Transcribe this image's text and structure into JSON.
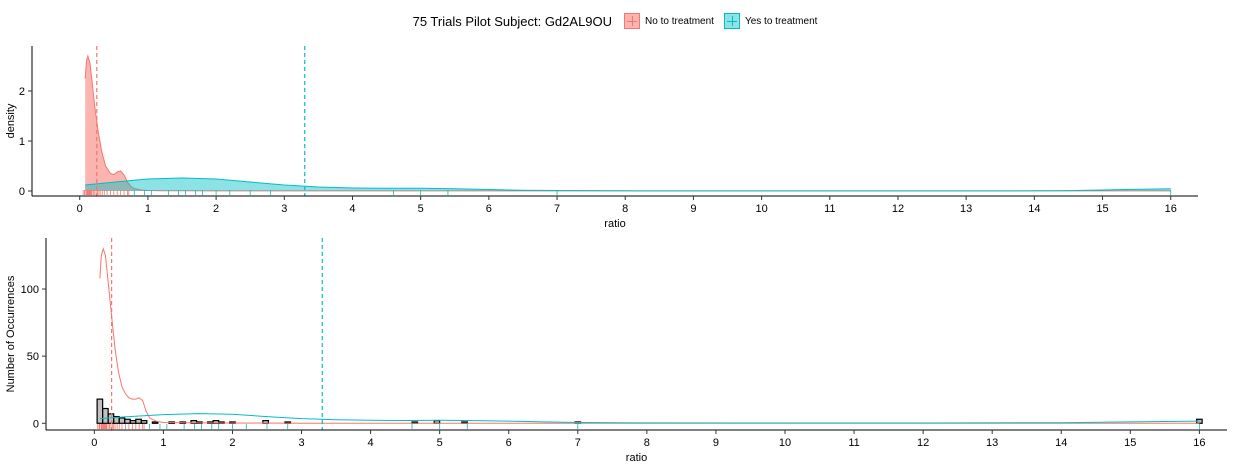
{
  "legend": {
    "title": "75 Trials Pilot Subject:  Gd2AL9OU",
    "items": [
      {
        "label": "No to treatment",
        "color": "#F8766D",
        "fill": "#F8766D"
      },
      {
        "label": "Yes to treatment",
        "color": "#00BFC4",
        "fill": "#00BFC4"
      }
    ]
  },
  "chart_data": [
    {
      "type": "area",
      "xlabel": "ratio",
      "ylabel": "density",
      "xlim": [
        -0.7,
        16.4
      ],
      "ylim": [
        -0.1,
        2.9
      ],
      "x_ticks": [
        0,
        1,
        2,
        3,
        4,
        5,
        6,
        7,
        8,
        9,
        10,
        11,
        12,
        13,
        14,
        15,
        16
      ],
      "y_ticks": [
        0,
        1,
        2
      ],
      "grid": false,
      "series": [
        {
          "name": "No to treatment",
          "color": "#F8766D",
          "mean_line": 0.25,
          "x": [
            0.08,
            0.1,
            0.12,
            0.15,
            0.18,
            0.22,
            0.27,
            0.32,
            0.38,
            0.45,
            0.5,
            0.55,
            0.6,
            0.65,
            0.7,
            0.75,
            0.8,
            0.9,
            1.0,
            1.2,
            1.5,
            2.0,
            3.0,
            4.0,
            5.0,
            6.0,
            7.0,
            8.0,
            10.0,
            12.0,
            14.0,
            16.0
          ],
          "values": [
            2.25,
            2.6,
            2.7,
            2.55,
            2.2,
            1.7,
            1.2,
            0.8,
            0.5,
            0.35,
            0.33,
            0.38,
            0.4,
            0.32,
            0.18,
            0.09,
            0.05,
            0.02,
            0.01,
            0.005,
            0.003,
            0.002,
            0.001,
            0.001,
            0.001,
            0.001,
            0.001,
            0.001,
            0.001,
            0.001,
            0.001,
            0.001
          ]
        },
        {
          "name": "Yes to treatment",
          "color": "#00BFC4",
          "mean_line": 3.3,
          "x": [
            0.08,
            0.3,
            0.6,
            1.0,
            1.5,
            2.0,
            2.5,
            3.0,
            3.5,
            4.0,
            4.5,
            5.0,
            5.5,
            6.0,
            6.5,
            7.0,
            8.0,
            9.0,
            10.0,
            11.0,
            12.0,
            13.0,
            14.0,
            14.5,
            15.0,
            15.5,
            16.0
          ],
          "values": [
            0.12,
            0.15,
            0.19,
            0.24,
            0.26,
            0.24,
            0.18,
            0.12,
            0.08,
            0.06,
            0.055,
            0.055,
            0.045,
            0.03,
            0.015,
            0.01,
            0.003,
            0.002,
            0.002,
            0.002,
            0.002,
            0.002,
            0.004,
            0.008,
            0.02,
            0.035,
            0.045
          ]
        }
      ],
      "rug_no": [
        0.05,
        0.07,
        0.08,
        0.1,
        0.11,
        0.12,
        0.13,
        0.14,
        0.15,
        0.16,
        0.17,
        0.18,
        0.2,
        0.22,
        0.24,
        0.26,
        0.28,
        0.3,
        0.33,
        0.36,
        0.4,
        0.45,
        0.5,
        0.55,
        0.6,
        0.65,
        0.7,
        0.72
      ],
      "rug_yes": [
        0.8,
        0.95,
        1.05,
        1.3,
        1.45,
        1.55,
        1.7,
        1.8,
        2.0,
        2.2,
        2.5,
        2.8,
        4.6,
        5.0,
        5.4,
        7.0,
        16.0
      ]
    },
    {
      "type": "bar",
      "xlabel": "ratio",
      "ylabel": "Number of Occurrences",
      "xlim": [
        -0.7,
        16.4
      ],
      "ylim": [
        -5,
        138
      ],
      "x_ticks": [
        0,
        1,
        2,
        3,
        4,
        5,
        6,
        7,
        8,
        9,
        10,
        11,
        12,
        13,
        14,
        15,
        16
      ],
      "y_ticks": [
        0,
        50,
        100
      ],
      "grid": false,
      "bin_width": 0.08,
      "bins_x": [
        0.08,
        0.16,
        0.24,
        0.32,
        0.4,
        0.48,
        0.56,
        0.64,
        0.72,
        0.88,
        1.12,
        1.28,
        1.44,
        1.52,
        1.68,
        1.76,
        1.84,
        2.0,
        2.48,
        2.8,
        4.64,
        4.96,
        5.36,
        7.0,
        16.0
      ],
      "bins_count": [
        18,
        11,
        7,
        5,
        4,
        3,
        2,
        3,
        2,
        1,
        1,
        1,
        2,
        1,
        1,
        2,
        1,
        1,
        2,
        1,
        1,
        2,
        1,
        1,
        3
      ],
      "series": [
        {
          "name": "No to treatment",
          "color": "#F8766D",
          "mean_line": 0.25,
          "x": [
            0.08,
            0.1,
            0.13,
            0.16,
            0.2,
            0.25,
            0.3,
            0.35,
            0.4,
            0.45,
            0.5,
            0.55,
            0.6,
            0.65,
            0.7,
            0.75,
            0.8,
            0.9,
            1.0,
            1.5,
            2.0,
            3.0,
            5.0,
            8.0,
            12.0,
            16.0
          ],
          "values": [
            108,
            125,
            130,
            125,
            105,
            80,
            55,
            38,
            27,
            22,
            19,
            18,
            18,
            19,
            17,
            9,
            4,
            1.5,
            0.6,
            0.3,
            0.2,
            0.1,
            0.1,
            0.1,
            0.1,
            0.1
          ]
        },
        {
          "name": "Yes to treatment",
          "color": "#00BFC4",
          "mean_line": 3.3,
          "x": [
            0.08,
            0.5,
            1.0,
            1.5,
            2.0,
            2.5,
            3.0,
            3.5,
            4.0,
            4.5,
            5.0,
            5.5,
            6.0,
            6.5,
            7.0,
            8.0,
            10.0,
            12.0,
            14.0,
            15.0,
            16.0
          ],
          "values": [
            3.5,
            5,
            6.5,
            7.2,
            6.8,
            5,
            3.5,
            2.6,
            2.2,
            2.1,
            2.2,
            2.0,
            1.6,
            1.0,
            0.6,
            0.3,
            0.2,
            0.2,
            0.4,
            1.0,
            1.6
          ]
        }
      ],
      "rug_no": [
        0.05,
        0.07,
        0.08,
        0.1,
        0.11,
        0.12,
        0.13,
        0.14,
        0.15,
        0.16,
        0.17,
        0.18,
        0.2,
        0.22,
        0.24,
        0.26,
        0.28,
        0.3,
        0.33,
        0.36,
        0.4,
        0.45,
        0.5,
        0.55,
        0.6,
        0.65,
        0.7,
        0.72
      ],
      "rug_yes": [
        0.8,
        0.95,
        1.05,
        1.3,
        1.45,
        1.55,
        1.7,
        1.8,
        2.0,
        2.2,
        2.5,
        2.8,
        4.6,
        5.0,
        5.4,
        7.0,
        16.0
      ]
    }
  ]
}
